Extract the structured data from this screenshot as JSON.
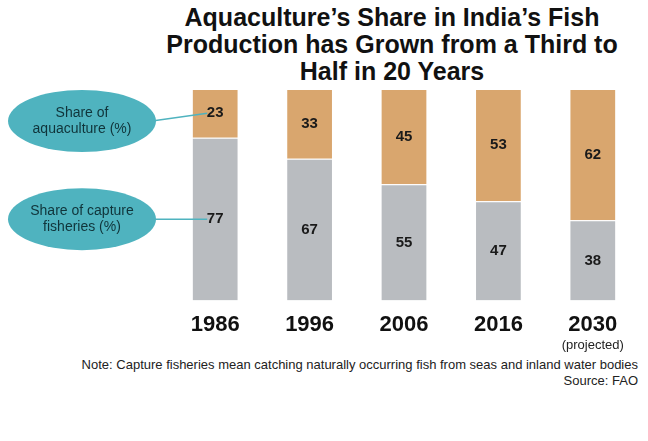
{
  "chart_data": {
    "type": "bar",
    "title": "Aquaculture’s Share in India’s Fish Production has Grown from a Third to Half in 20 Years",
    "categories": [
      "1986",
      "1996",
      "2006",
      "2016",
      "2030"
    ],
    "series": [
      {
        "name": "Share of aquaculture (%)",
        "color": "#d9a66e",
        "values": [
          23,
          33,
          45,
          53,
          62
        ]
      },
      {
        "name": "Share of capture fisheries (%)",
        "color": "#b9bcc0",
        "values": [
          77,
          67,
          55,
          47,
          38
        ]
      }
    ],
    "annotations": [
      {
        "text": "(projected)",
        "category": "2030"
      }
    ],
    "note": "Note: Capture fisheries mean catching naturally occurring fish from seas and inland water bodies",
    "source": "Source: FAO",
    "ylim": [
      0,
      100
    ],
    "stacked": true,
    "data_labels": true,
    "tick_labels": "x",
    "grid": false,
    "legend": "left"
  }
}
